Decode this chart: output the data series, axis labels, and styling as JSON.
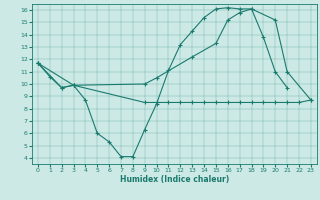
{
  "xlabel": "Humidex (Indice chaleur)",
  "bg_color": "#cce9e5",
  "line_color": "#1a7a6e",
  "xlim": [
    -0.5,
    23.5
  ],
  "ylim": [
    3.5,
    16.5
  ],
  "xticks": [
    0,
    1,
    2,
    3,
    4,
    5,
    6,
    7,
    8,
    9,
    10,
    11,
    12,
    13,
    14,
    15,
    16,
    17,
    18,
    19,
    20,
    21,
    22,
    23
  ],
  "yticks": [
    4,
    5,
    6,
    7,
    8,
    9,
    10,
    11,
    12,
    13,
    14,
    15,
    16
  ],
  "line1_x": [
    0,
    1,
    2,
    3,
    4,
    5,
    6,
    7,
    8,
    9,
    10,
    11,
    12,
    13,
    14,
    15,
    16,
    17,
    18,
    19,
    20,
    21
  ],
  "line1_y": [
    11.7,
    10.6,
    9.7,
    9.9,
    8.7,
    6.0,
    5.3,
    4.1,
    4.1,
    6.3,
    8.4,
    11.1,
    13.2,
    14.3,
    15.4,
    16.1,
    16.2,
    16.1,
    16.1,
    13.8,
    11.0,
    9.7
  ],
  "line2_x": [
    0,
    2,
    3,
    9,
    10,
    11,
    12,
    13,
    14,
    15,
    16,
    17,
    18,
    19,
    20,
    21,
    22,
    23
  ],
  "line2_y": [
    11.7,
    9.7,
    9.9,
    8.5,
    8.5,
    8.5,
    8.5,
    8.5,
    8.5,
    8.5,
    8.5,
    8.5,
    8.5,
    8.5,
    8.5,
    8.5,
    8.5,
    8.7
  ],
  "line3_x": [
    0,
    3,
    9,
    10,
    13,
    15,
    16,
    17,
    18,
    20,
    21,
    23
  ],
  "line3_y": [
    11.7,
    9.9,
    10.0,
    10.5,
    12.2,
    13.3,
    15.2,
    15.8,
    16.1,
    15.2,
    11.0,
    8.7
  ]
}
